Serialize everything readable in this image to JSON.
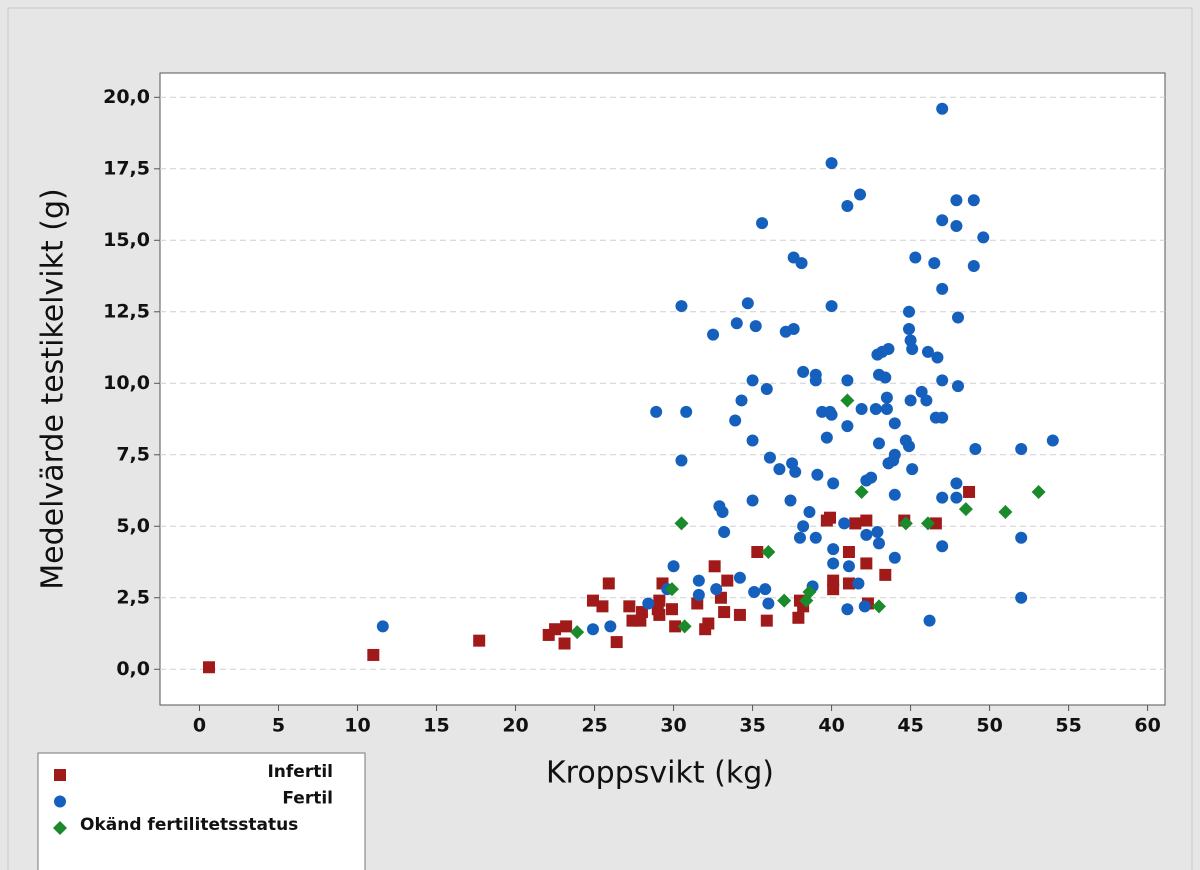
{
  "chart_data": {
    "type": "scatter",
    "x_label": "Kroppsvikt (kg)",
    "y_label": "Medelvärde testikelvikt (g)",
    "xlim": [
      -2.5,
      61.1
    ],
    "ylim": [
      -1.25,
      20.85
    ],
    "xticks": [
      0,
      5,
      10,
      15,
      20,
      25,
      30,
      35,
      40,
      45,
      50,
      55,
      60
    ],
    "yticks": [
      {
        "value": 0,
        "label": "0,0"
      },
      {
        "value": 2.5,
        "label": "2,5"
      },
      {
        "value": 5,
        "label": "5,0"
      },
      {
        "value": 7.5,
        "label": "7,5"
      },
      {
        "value": 10,
        "label": "10,0"
      },
      {
        "value": 12.5,
        "label": "12,5"
      },
      {
        "value": 15,
        "label": "15,0"
      },
      {
        "value": 17.5,
        "label": "17,5"
      },
      {
        "value": 20,
        "label": "20,0"
      }
    ],
    "grid": true,
    "legend": "bottom-left",
    "series": [
      {
        "name": "Infertil",
        "color": "#a11a1a",
        "marker": "square",
        "x": [
          0.6,
          11.0,
          17.7,
          22.1,
          22.5,
          23.2,
          23.1,
          24.9,
          25.5,
          25.9,
          26.4,
          27.2,
          27.4,
          27.9,
          28.0,
          29.0,
          29.1,
          29.3,
          29.1,
          29.9,
          30.1,
          31.5,
          32.0,
          32.2,
          32.6,
          33.0,
          33.4,
          33.2,
          34.2,
          35.3,
          35.9,
          37.9,
          38.2,
          38.0,
          39.7,
          39.9,
          40.1,
          40.1,
          41.1,
          41.1,
          41.5,
          42.2,
          42.2,
          42.3,
          43.4,
          44.6,
          46.6,
          48.7
        ],
        "values": [
          0.07,
          0.5,
          1.0,
          1.2,
          1.4,
          1.5,
          0.9,
          2.4,
          2.2,
          3.0,
          0.95,
          2.2,
          1.7,
          1.7,
          2.0,
          2.1,
          2.4,
          3.0,
          1.9,
          2.1,
          1.5,
          2.3,
          1.4,
          1.6,
          3.6,
          2.5,
          3.1,
          2.0,
          1.9,
          4.1,
          1.7,
          1.8,
          2.2,
          2.4,
          5.2,
          5.3,
          2.8,
          3.1,
          4.1,
          3.0,
          5.1,
          5.2,
          3.7,
          2.3,
          3.3,
          5.2,
          5.1,
          6.2
        ]
      },
      {
        "name": "Fertil",
        "color": "#1560bd",
        "marker": "circle",
        "x": [
          11.6,
          24.9,
          26.0,
          28.4,
          28.9,
          29.6,
          30.0,
          30.5,
          30.5,
          30.8,
          31.6,
          31.6,
          32.5,
          32.7,
          32.9,
          33.1,
          33.2,
          33.9,
          34.0,
          34.2,
          34.3,
          34.7,
          35.0,
          35.0,
          35.0,
          35.1,
          35.2,
          35.6,
          35.8,
          36.0,
          35.9,
          36.1,
          36.7,
          37.1,
          37.6,
          37.6,
          38.1,
          37.4,
          37.5,
          37.7,
          38.0,
          38.2,
          38.2,
          38.6,
          38.8,
          39.0,
          39.0,
          39.0,
          39.1,
          39.4,
          39.7,
          39.9,
          40.0,
          40.0,
          40.0,
          40.1,
          40.1,
          40.1,
          40.8,
          41.0,
          41.0,
          41.0,
          41.0,
          41.1,
          41.7,
          41.8,
          41.9,
          42.2,
          42.2,
          42.1,
          42.5,
          42.8,
          42.9,
          42.9,
          43.0,
          43.0,
          43.0,
          43.2,
          43.4,
          43.5,
          43.6,
          43.5,
          43.6,
          43.9,
          44.0,
          44.0,
          44.0,
          44.0,
          44.7,
          44.9,
          44.9,
          44.9,
          45.0,
          45.1,
          45.0,
          45.1,
          45.3,
          45.7,
          46.0,
          46.1,
          46.2,
          46.5,
          46.6,
          46.7,
          47.0,
          47.0,
          47.0,
          47.0,
          47.0,
          47.0,
          47.0,
          47.9,
          47.9,
          47.9,
          47.9,
          48.0,
          48.0,
          49.0,
          49.0,
          49.1,
          49.6,
          52.0,
          52.0,
          52.0,
          54.0
        ],
        "values": [
          1.5,
          1.4,
          1.5,
          2.3,
          9.0,
          2.8,
          3.6,
          12.7,
          7.3,
          9.0,
          3.1,
          2.6,
          11.7,
          2.8,
          5.7,
          5.5,
          4.8,
          8.7,
          12.1,
          3.2,
          9.4,
          12.8,
          10.1,
          8.0,
          5.9,
          2.7,
          12.0,
          15.6,
          2.8,
          2.3,
          9.8,
          7.4,
          7.0,
          11.8,
          11.9,
          14.4,
          14.2,
          5.9,
          7.2,
          6.9,
          4.6,
          5.0,
          10.4,
          5.5,
          2.9,
          10.3,
          10.1,
          4.6,
          6.8,
          9.0,
          8.1,
          9.0,
          8.9,
          17.7,
          12.7,
          6.5,
          4.2,
          3.7,
          5.1,
          2.1,
          10.1,
          8.5,
          16.2,
          3.6,
          3.0,
          16.6,
          9.1,
          6.6,
          4.7,
          2.2,
          6.7,
          9.1,
          11.0,
          4.8,
          4.4,
          7.9,
          10.3,
          11.1,
          10.2,
          9.5,
          7.2,
          9.1,
          11.2,
          7.3,
          7.5,
          8.6,
          6.1,
          3.9,
          8.0,
          7.8,
          12.5,
          11.9,
          11.5,
          11.2,
          9.4,
          7.0,
          14.4,
          9.7,
          9.4,
          11.1,
          1.7,
          14.2,
          8.8,
          10.9,
          19.6,
          15.7,
          13.3,
          10.1,
          8.8,
          6.0,
          4.3,
          6.0,
          6.5,
          16.4,
          15.5,
          12.3,
          9.9,
          16.4,
          14.1,
          7.7,
          15.1,
          7.7,
          4.6,
          2.5,
          8.0
        ]
      },
      {
        "name": "Okänd fertilitetsstatus",
        "color": "#1a8a2a",
        "marker": "diamond",
        "x": [
          23.9,
          29.9,
          30.5,
          30.7,
          36.0,
          37.0,
          38.4,
          38.6,
          41.0,
          41.9,
          43.0,
          44.7,
          46.1,
          48.5,
          51.0,
          53.1
        ],
        "values": [
          1.3,
          2.8,
          5.1,
          1.5,
          4.1,
          2.4,
          2.4,
          2.7,
          9.4,
          6.2,
          2.2,
          5.1,
          5.1,
          5.6,
          5.5,
          6.2
        ]
      }
    ]
  }
}
